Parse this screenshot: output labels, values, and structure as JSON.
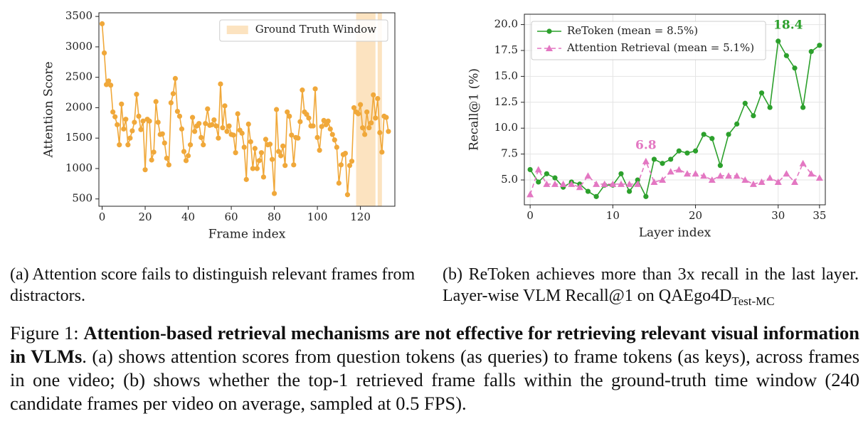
{
  "chart_data": [
    {
      "type": "line",
      "xlabel": "Frame index",
      "ylabel": "Attention Score",
      "xlim": [
        -1.5,
        136
      ],
      "ylim": [
        380,
        3560
      ],
      "xticks": [
        0,
        20,
        40,
        60,
        80,
        100,
        120
      ],
      "yticks": [
        500,
        1000,
        1500,
        2000,
        2500,
        3000,
        3500
      ],
      "grid": false,
      "legend": "upper right",
      "shade": {
        "name": "Ground Truth Window",
        "color": "#fce3c0",
        "spans": [
          [
            118,
            127
          ],
          [
            128,
            130
          ]
        ]
      },
      "x": [
        0,
        1,
        2,
        3,
        4,
        5,
        6,
        7,
        8,
        9,
        10,
        11,
        12,
        13,
        14,
        15,
        16,
        17,
        18,
        19,
        20,
        21,
        22,
        23,
        24,
        25,
        26,
        27,
        28,
        29,
        30,
        31,
        32,
        33,
        34,
        35,
        36,
        37,
        38,
        39,
        40,
        41,
        42,
        43,
        44,
        45,
        46,
        47,
        48,
        49,
        50,
        51,
        52,
        53,
        54,
        55,
        56,
        57,
        58,
        59,
        60,
        61,
        62,
        63,
        64,
        65,
        66,
        67,
        68,
        69,
        70,
        71,
        72,
        73,
        74,
        75,
        76,
        77,
        78,
        79,
        80,
        81,
        82,
        83,
        84,
        85,
        86,
        87,
        88,
        89,
        90,
        91,
        92,
        93,
        94,
        95,
        96,
        97,
        98,
        99,
        100,
        101,
        102,
        103,
        104,
        105,
        106,
        107,
        108,
        109,
        110,
        111,
        112,
        113,
        114,
        115,
        116,
        117,
        118,
        119,
        120,
        121,
        122,
        123,
        124,
        125,
        126,
        127,
        128,
        129,
        130,
        131,
        132,
        133
      ],
      "series": [
        {
          "color": "#f0a83a",
          "marker": "o",
          "linestyle": "solid",
          "values": [
            3380,
            2900,
            2380,
            2440,
            2370,
            1930,
            1850,
            1720,
            1390,
            2060,
            1650,
            1810,
            1390,
            1500,
            1620,
            1760,
            2220,
            1860,
            1640,
            1780,
            980,
            1810,
            1780,
            1140,
            1270,
            2100,
            1760,
            1560,
            1570,
            1420,
            1170,
            1060,
            2080,
            2230,
            2480,
            1940,
            1860,
            1650,
            1280,
            1130,
            1210,
            1390,
            1840,
            1610,
            1700,
            1740,
            1510,
            1390,
            1740,
            1980,
            1710,
            1720,
            1800,
            1700,
            1500,
            2390,
            1670,
            2030,
            1610,
            1700,
            1560,
            1550,
            1260,
            1900,
            1630,
            1580,
            1350,
            820,
            1730,
            1440,
            1000,
            1330,
            1000,
            1130,
            1260,
            860,
            1480,
            1390,
            1400,
            1150,
            590,
            1970,
            1280,
            1210,
            1370,
            1050,
            1930,
            1860,
            1550,
            1060,
            1510,
            1500,
            1770,
            2290,
            1930,
            1890,
            1830,
            1700,
            1700,
            2310,
            1510,
            1300,
            1690,
            1790,
            1720,
            1780,
            1650,
            1560,
            1470,
            1350,
            760,
            1060,
            1230,
            1250,
            570,
            1050,
            1120,
            2000,
            1930,
            1900,
            2050,
            1670,
            1560,
            1930,
            1670,
            1750,
            2210,
            1830,
            2150,
            1590,
            1270,
            1860,
            1840,
            1610
          ]
        }
      ]
    },
    {
      "type": "line",
      "xlabel": "Layer index",
      "ylabel": "Recall@1 (%)",
      "xlim": [
        -0.7,
        35.7
      ],
      "ylim": [
        2.6,
        21
      ],
      "xticks": [
        0,
        10,
        20,
        30,
        35
      ],
      "yticks": [
        {
          "value": 5,
          "label": "5.0"
        },
        {
          "value": 7.5,
          "label": "7.5"
        },
        {
          "value": 10,
          "label": "10.0"
        },
        {
          "value": 12.5,
          "label": "12.5"
        },
        {
          "value": 15,
          "label": "15.0"
        },
        {
          "value": 17.5,
          "label": "17.5"
        },
        {
          "value": 20,
          "label": "20.0"
        }
      ],
      "grid": true,
      "legend": "upper left",
      "x": [
        0,
        1,
        2,
        3,
        4,
        5,
        6,
        7,
        8,
        9,
        10,
        11,
        12,
        13,
        14,
        15,
        16,
        17,
        18,
        19,
        20,
        21,
        22,
        23,
        24,
        25,
        26,
        27,
        28,
        29,
        30,
        31,
        32,
        33,
        34,
        35
      ],
      "series": [
        {
          "name": "ReToken (mean = 8.5%)",
          "color": "#2ca02c",
          "marker": "o",
          "linestyle": "solid",
          "values": [
            6.0,
            4.8,
            5.6,
            5.2,
            4.3,
            4.8,
            4.6,
            3.9,
            3.4,
            4.5,
            4.5,
            5.6,
            3.9,
            5.0,
            3.4,
            7.0,
            6.6,
            7.0,
            7.8,
            7.6,
            7.8,
            9.4,
            9.0,
            6.4,
            9.4,
            10.4,
            12.4,
            11.2,
            13.4,
            12.0,
            18.4,
            17.0,
            15.8,
            12.0,
            17.4,
            18.0
          ],
          "value_labels": [
            null,
            null,
            null,
            null,
            null,
            null,
            null,
            null,
            null,
            null,
            null,
            null,
            null,
            null,
            null,
            null,
            null,
            null,
            null,
            null,
            null,
            null,
            null,
            null,
            null,
            null,
            null,
            null,
            null,
            null,
            "18.4",
            null,
            null,
            null,
            null,
            null
          ]
        },
        {
          "name": "Attention Retrieval (mean = 5.1%)",
          "color": "#e377c2",
          "marker": "^",
          "linestyle": "dashed",
          "values": [
            3.6,
            6.0,
            4.6,
            4.6,
            4.6,
            4.6,
            4.3,
            5.4,
            4.6,
            4.6,
            4.6,
            4.6,
            4.6,
            4.6,
            6.8,
            4.8,
            5.0,
            5.8,
            6.0,
            5.6,
            5.6,
            5.4,
            5.0,
            5.4,
            5.4,
            5.4,
            5.0,
            4.6,
            4.8,
            5.2,
            4.8,
            5.6,
            4.8,
            6.6,
            5.6,
            5.2
          ],
          "value_labels": [
            null,
            null,
            null,
            null,
            null,
            null,
            null,
            null,
            null,
            null,
            null,
            null,
            null,
            null,
            "6.8",
            null,
            null,
            null,
            null,
            null,
            null,
            null,
            null,
            null,
            null,
            null,
            null,
            null,
            null,
            null,
            null,
            null,
            null,
            null,
            null,
            null
          ]
        }
      ]
    }
  ],
  "subcaptions": [
    {
      "text": "(a) Attention score fails to distinguish relevant frames from distractors."
    },
    {
      "text": "(b) ReToken achieves more than 3x recall in the last layer. Layer-wise VLM Recall@1 on QAEgo4D",
      "sub": "Test-MC"
    }
  ],
  "caption": {
    "label": "Figure 1:",
    "bold": "Attention-based retrieval mechanisms are not effective for retrieving relevant visual information in VLMs",
    "text": ". (a) shows attention scores from question tokens (as queries) to frame tokens (as keys), across frames in one video; (b) shows whether the top-1 retrieved frame falls within the ground-truth time window (240 candidate frames per video on average, sampled at 0.5 FPS)."
  }
}
